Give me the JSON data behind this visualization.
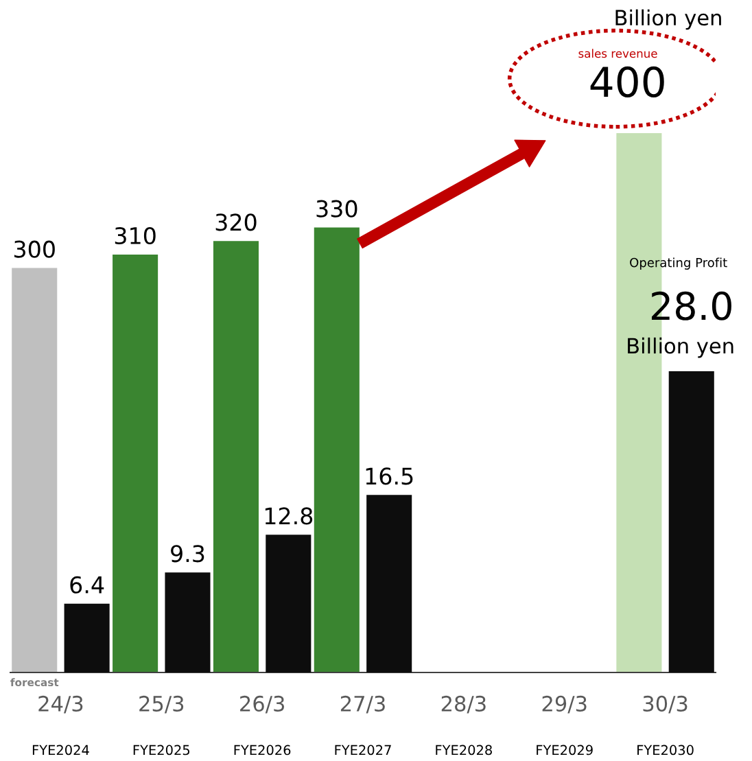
{
  "chart_data": {
    "type": "bar",
    "categories": [
      "24/3",
      "25/3",
      "26/3",
      "27/3",
      "28/3",
      "29/3",
      "30/3"
    ],
    "series": [
      {
        "colors": [
          "#bfbfbf",
          "#3a8530",
          "#3a8530",
          "#3a8530",
          "#3a8530",
          "#3a8530",
          "#c5e0b4"
        ],
        "values": [
          300,
          310,
          320,
          330,
          null,
          null,
          400
        ],
        "value_labels": [
          "300",
          "310",
          "320",
          "330",
          null,
          null,
          "400"
        ]
      },
      {
        "color": "#0d0d0d",
        "axis": "y2",
        "values": [
          6.4,
          9.3,
          12.8,
          16.5,
          null,
          null,
          28.0
        ],
        "value_labels": [
          "6.4",
          "9.3",
          "12.8",
          "16.5",
          null,
          null,
          "28.0"
        ]
      }
    ],
    "tick_labels": "x",
    "grid": false,
    "annotations": [
      "Billion yen",
      "sales revenue",
      "Operating Profit",
      "Billion yen",
      "forecast",
      "FYE2024",
      "FYE2025",
      "FYE2026",
      "FYE2027",
      "FYE2028",
      "FYE2029",
      "FYE2030"
    ]
  }
}
